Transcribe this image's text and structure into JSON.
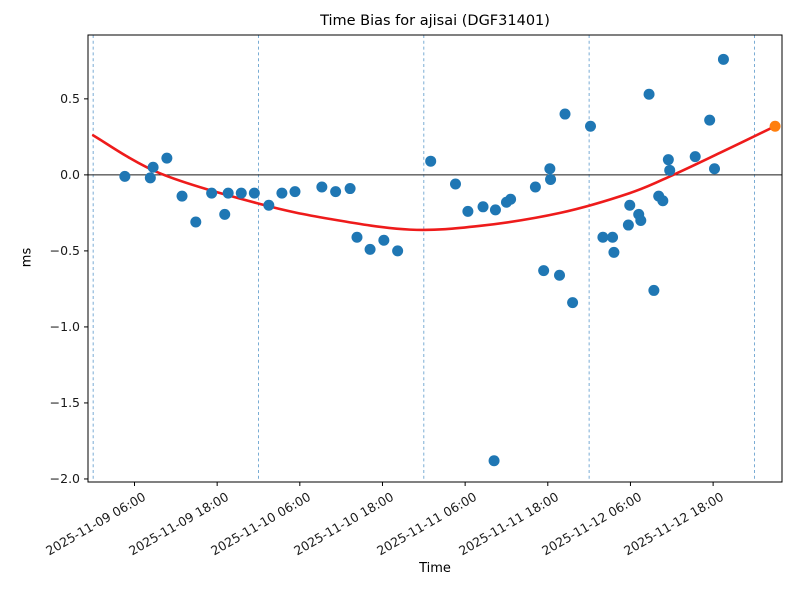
{
  "chart_data": {
    "type": "scatter",
    "title": "Time Bias for ajisai (DGF31401)",
    "xlabel": "Time",
    "ylabel": "ms",
    "x_hours_since": "2025-11-09 00:00",
    "xlim_hours": [
      -0.75,
      100.0
    ],
    "ylim": [
      -2.02,
      0.92
    ],
    "grid": "vertical dashed lines at day boundaries",
    "legend_position": "none",
    "x_ticks": [
      {
        "hour": 6,
        "label": "2025-11-09 06:00"
      },
      {
        "hour": 18,
        "label": "2025-11-09 18:00"
      },
      {
        "hour": 30,
        "label": "2025-11-10 06:00"
      },
      {
        "hour": 42,
        "label": "2025-11-10 18:00"
      },
      {
        "hour": 54,
        "label": "2025-11-11 06:00"
      },
      {
        "hour": 66,
        "label": "2025-11-11 18:00"
      },
      {
        "hour": 78,
        "label": "2025-11-12 06:00"
      },
      {
        "hour": 90,
        "label": "2025-11-12 18:00"
      }
    ],
    "y_ticks": [
      {
        "value": 0.5,
        "label": "0.5"
      },
      {
        "value": 0.0,
        "label": "0.0"
      },
      {
        "value": -0.5,
        "label": "−0.5"
      },
      {
        "value": -1.0,
        "label": "−1.0"
      },
      {
        "value": -1.5,
        "label": "−1.5"
      },
      {
        "value": -2.0,
        "label": "−2.0"
      }
    ],
    "day_gridlines_hours": [
      0,
      24,
      48,
      72,
      96
    ],
    "zero_line_value": 0.0,
    "colors": {
      "observations": "#1f77b4",
      "latest_point": "#ff7f0e",
      "fit_curve": "#ee1b1b",
      "gridline": "#6ba3d0",
      "zero_line": "#1a1a1a",
      "frame": "#000000"
    },
    "series": [
      {
        "name": "observations",
        "marker": "circle",
        "color": "#1f77b4",
        "points": [
          [
            4.6,
            -0.01
          ],
          [
            8.3,
            -0.02
          ],
          [
            8.7,
            0.05
          ],
          [
            10.7,
            0.11
          ],
          [
            12.9,
            -0.14
          ],
          [
            14.9,
            -0.31
          ],
          [
            17.2,
            -0.12
          ],
          [
            19.1,
            -0.26
          ],
          [
            19.6,
            -0.12
          ],
          [
            21.5,
            -0.12
          ],
          [
            23.4,
            -0.12
          ],
          [
            25.5,
            -0.2
          ],
          [
            27.4,
            -0.12
          ],
          [
            29.3,
            -0.11
          ],
          [
            33.2,
            -0.08
          ],
          [
            35.2,
            -0.11
          ],
          [
            37.3,
            -0.09
          ],
          [
            38.3,
            -0.41
          ],
          [
            40.2,
            -0.49
          ],
          [
            42.2,
            -0.43
          ],
          [
            44.2,
            -0.5
          ],
          [
            49.0,
            0.09
          ],
          [
            52.6,
            -0.06
          ],
          [
            54.4,
            -0.24
          ],
          [
            56.6,
            -0.21
          ],
          [
            58.2,
            -1.88
          ],
          [
            58.4,
            -0.23
          ],
          [
            60.0,
            -0.18
          ],
          [
            60.6,
            -0.16
          ],
          [
            64.2,
            -0.08
          ],
          [
            65.4,
            -0.63
          ],
          [
            66.3,
            0.04
          ],
          [
            66.4,
            -0.03
          ],
          [
            67.7,
            -0.66
          ],
          [
            68.5,
            0.4
          ],
          [
            69.6,
            -0.84
          ],
          [
            72.2,
            0.32
          ],
          [
            74.0,
            -0.41
          ],
          [
            75.4,
            -0.41
          ],
          [
            75.6,
            -0.51
          ],
          [
            77.7,
            -0.33
          ],
          [
            77.9,
            -0.2
          ],
          [
            79.2,
            -0.26
          ],
          [
            79.5,
            -0.3
          ],
          [
            80.7,
            0.53
          ],
          [
            81.4,
            -0.76
          ],
          [
            82.1,
            -0.14
          ],
          [
            82.7,
            -0.17
          ],
          [
            83.5,
            0.1
          ],
          [
            83.7,
            0.03
          ],
          [
            87.4,
            0.12
          ],
          [
            89.5,
            0.36
          ],
          [
            90.2,
            0.04
          ],
          [
            91.5,
            0.76
          ]
        ]
      },
      {
        "name": "latest-point",
        "marker": "circle",
        "color": "#ff7f0e",
        "points": [
          [
            99.0,
            0.32
          ]
        ]
      }
    ],
    "fit_curve": {
      "name": "polynomial-fit",
      "color": "#ee1b1b",
      "points": [
        [
          0.0,
          0.26
        ],
        [
          9.7,
          0.01
        ],
        [
          24.1,
          -0.19
        ],
        [
          34.4,
          -0.29
        ],
        [
          46.0,
          -0.36
        ],
        [
          56.2,
          -0.335
        ],
        [
          67.8,
          -0.25
        ],
        [
          77.9,
          -0.12
        ],
        [
          84.2,
          0.0
        ],
        [
          91.0,
          0.145
        ],
        [
          99.0,
          0.32
        ]
      ]
    }
  }
}
